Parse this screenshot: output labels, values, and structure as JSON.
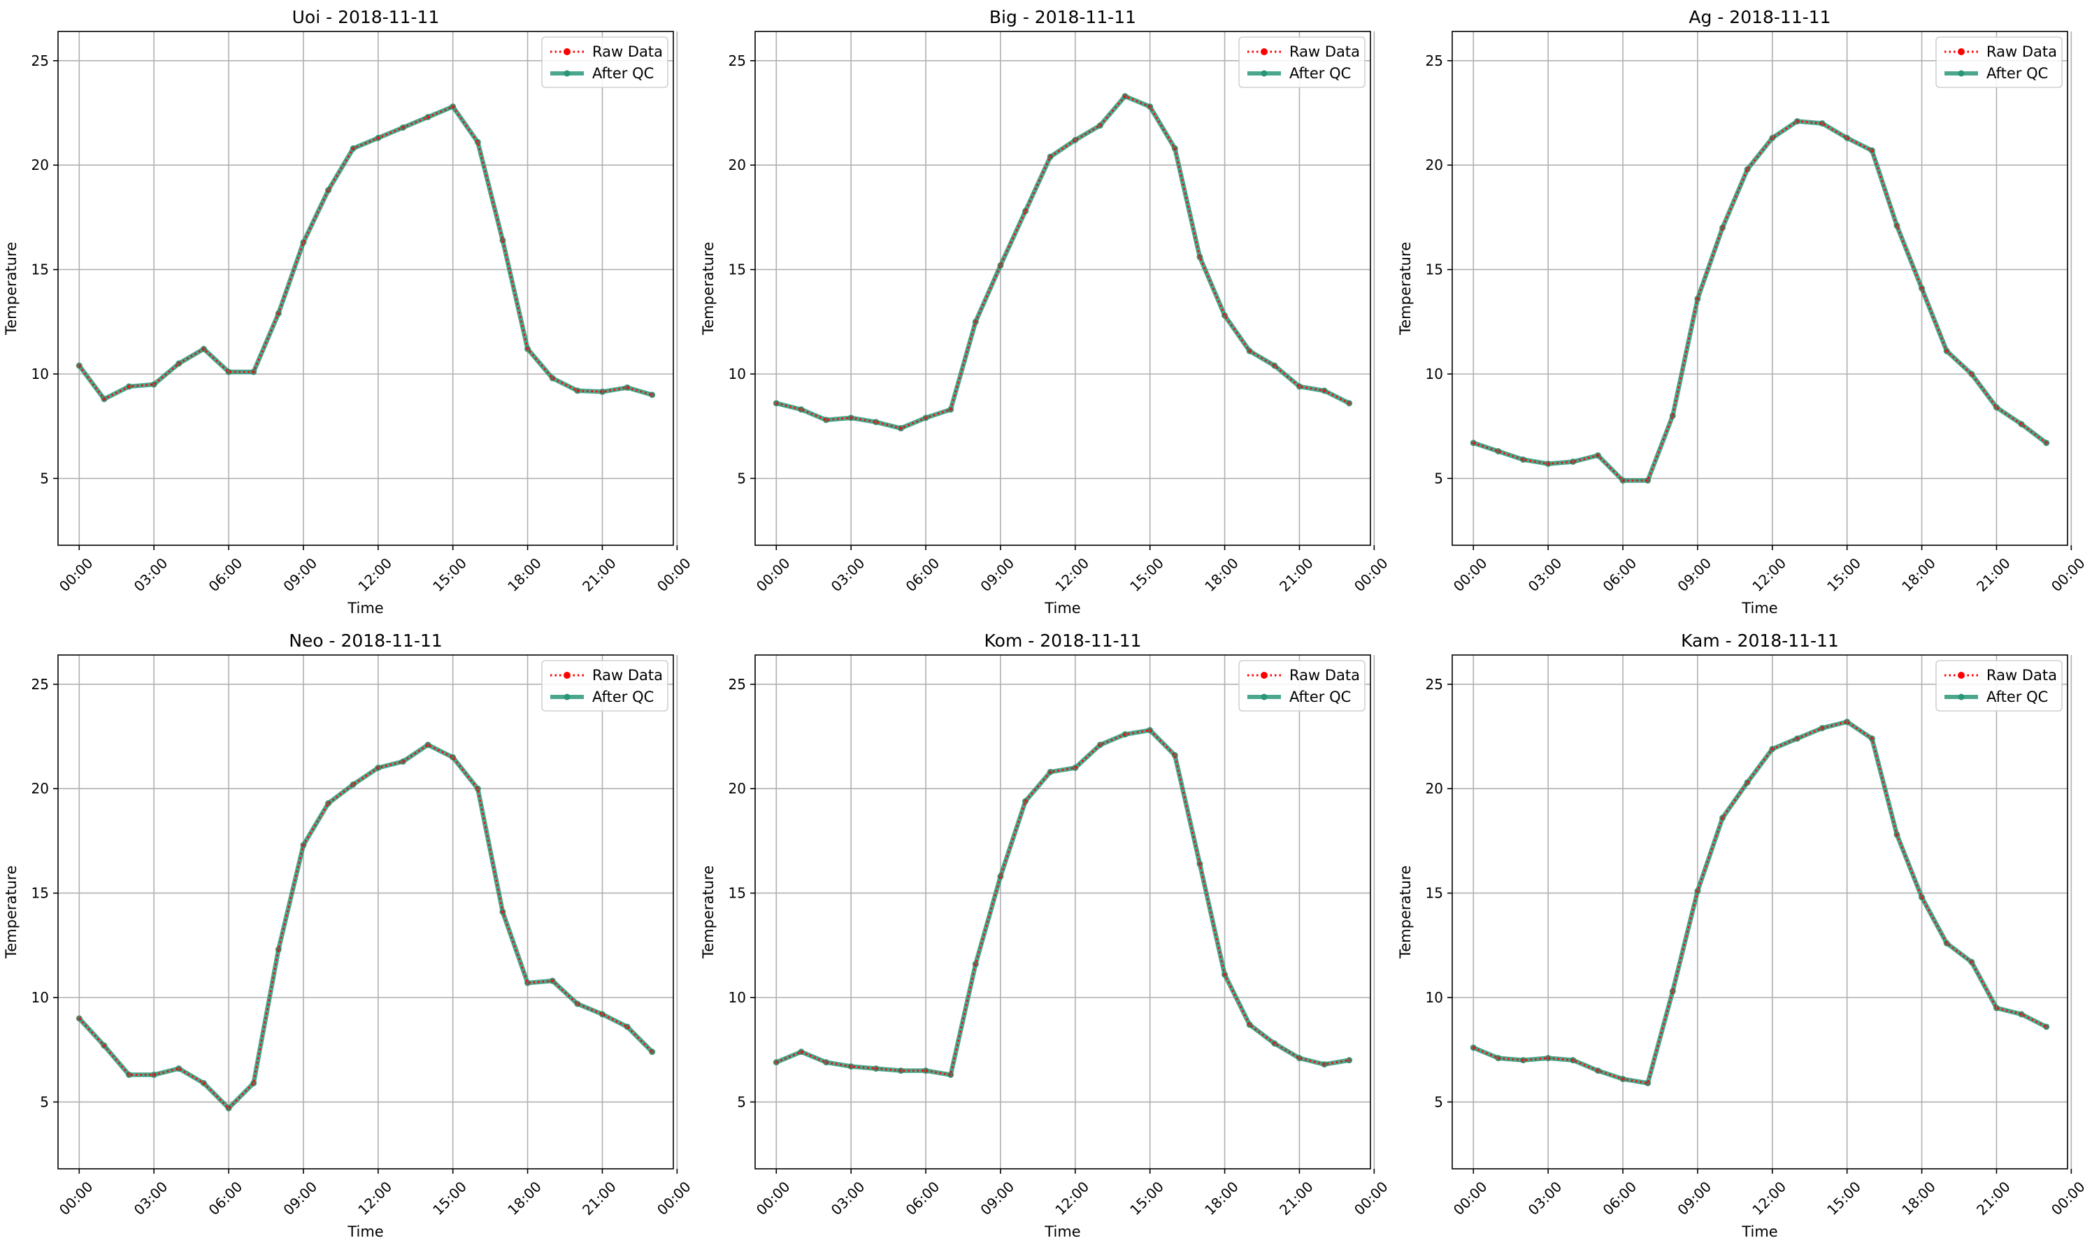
{
  "chart_data": [
    {
      "type": "line",
      "title": "Uoi - 2018-11-11",
      "xlabel": "Time",
      "ylabel": "Temperature",
      "ylim": [
        1.8,
        26.4
      ],
      "xlim": [
        -0.85,
        23.85
      ],
      "yticks": [
        5,
        10,
        15,
        20,
        25
      ],
      "xticks": [
        0,
        3,
        6,
        9,
        12,
        15,
        18,
        21,
        24
      ],
      "xtick_labels": [
        "00:00",
        "03:00",
        "06:00",
        "09:00",
        "12:00",
        "15:00",
        "18:00",
        "21:00",
        "00:00"
      ],
      "grid": true,
      "legend_position": "top-right",
      "x": [
        0,
        1,
        2,
        3,
        4,
        5,
        6,
        7,
        8,
        9,
        10,
        11,
        12,
        13,
        14,
        15,
        16,
        17,
        18,
        19,
        20,
        21,
        22,
        23
      ],
      "series": [
        {
          "name": "Raw Data",
          "color": "#ff0000",
          "style": "dotted",
          "values": [
            10.4,
            8.8,
            9.4,
            9.5,
            10.5,
            11.2,
            10.1,
            10.1,
            12.9,
            16.3,
            18.8,
            20.8,
            21.3,
            21.8,
            22.3,
            22.8,
            21.1,
            16.4,
            11.2,
            9.8,
            9.2,
            9.15,
            9.35,
            9.0
          ]
        },
        {
          "name": "After QC",
          "color": "#2a9678",
          "style": "solid",
          "values": [
            10.4,
            8.8,
            9.4,
            9.5,
            10.5,
            11.2,
            10.1,
            10.1,
            12.9,
            16.3,
            18.8,
            20.8,
            21.3,
            21.8,
            22.3,
            22.8,
            21.1,
            16.4,
            11.2,
            9.8,
            9.2,
            9.15,
            9.35,
            9.0
          ]
        }
      ]
    },
    {
      "type": "line",
      "title": "Big - 2018-11-11",
      "xlabel": "Time",
      "ylabel": "Temperature",
      "ylim": [
        1.8,
        26.4
      ],
      "xlim": [
        -0.85,
        23.85
      ],
      "yticks": [
        5,
        10,
        15,
        20,
        25
      ],
      "xticks": [
        0,
        3,
        6,
        9,
        12,
        15,
        18,
        21,
        24
      ],
      "xtick_labels": [
        "00:00",
        "03:00",
        "06:00",
        "09:00",
        "12:00",
        "15:00",
        "18:00",
        "21:00",
        "00:00"
      ],
      "grid": true,
      "legend_position": "top-right",
      "x": [
        0,
        1,
        2,
        3,
        4,
        5,
        6,
        7,
        8,
        9,
        10,
        11,
        12,
        13,
        14,
        15,
        16,
        17,
        18,
        19,
        20,
        21,
        22,
        23
      ],
      "series": [
        {
          "name": "Raw Data",
          "color": "#ff0000",
          "style": "dotted",
          "values": [
            8.6,
            8.3,
            7.8,
            7.9,
            7.7,
            7.4,
            7.9,
            8.3,
            12.5,
            15.2,
            17.8,
            20.4,
            21.2,
            21.9,
            23.3,
            22.8,
            20.8,
            15.6,
            12.8,
            11.1,
            10.4,
            9.4,
            9.2,
            8.6
          ]
        },
        {
          "name": "After QC",
          "color": "#2a9678",
          "style": "solid",
          "values": [
            8.6,
            8.3,
            7.8,
            7.9,
            7.7,
            7.4,
            7.9,
            8.3,
            12.5,
            15.2,
            17.8,
            20.4,
            21.2,
            21.9,
            23.3,
            22.8,
            20.8,
            15.6,
            12.8,
            11.1,
            10.4,
            9.4,
            9.2,
            8.6
          ]
        }
      ]
    },
    {
      "type": "line",
      "title": "Ag - 2018-11-11",
      "xlabel": "Time",
      "ylabel": "Temperature",
      "ylim": [
        1.8,
        26.4
      ],
      "xlim": [
        -0.85,
        23.85
      ],
      "yticks": [
        5,
        10,
        15,
        20,
        25
      ],
      "xticks": [
        0,
        3,
        6,
        9,
        12,
        15,
        18,
        21,
        24
      ],
      "xtick_labels": [
        "00:00",
        "03:00",
        "06:00",
        "09:00",
        "12:00",
        "15:00",
        "18:00",
        "21:00",
        "00:00"
      ],
      "grid": true,
      "legend_position": "top-right",
      "x": [
        0,
        1,
        2,
        3,
        4,
        5,
        6,
        7,
        8,
        9,
        10,
        11,
        12,
        13,
        14,
        15,
        16,
        17,
        18,
        19,
        20,
        21,
        22,
        23
      ],
      "series": [
        {
          "name": "Raw Data",
          "color": "#ff0000",
          "style": "dotted",
          "values": [
            6.7,
            6.3,
            5.9,
            5.7,
            5.8,
            6.1,
            4.9,
            4.9,
            8.0,
            13.6,
            17.0,
            19.8,
            21.3,
            22.1,
            22.0,
            21.3,
            20.7,
            17.1,
            14.1,
            11.1,
            10.0,
            8.4,
            7.6,
            6.7
          ]
        },
        {
          "name": "After QC",
          "color": "#2a9678",
          "style": "solid",
          "values": [
            6.7,
            6.3,
            5.9,
            5.7,
            5.8,
            6.1,
            4.9,
            4.9,
            8.0,
            13.6,
            17.0,
            19.8,
            21.3,
            22.1,
            22.0,
            21.3,
            20.7,
            17.1,
            14.1,
            11.1,
            10.0,
            8.4,
            7.6,
            6.7
          ]
        }
      ]
    },
    {
      "type": "line",
      "title": "Neo - 2018-11-11",
      "xlabel": "Time",
      "ylabel": "Temperature",
      "ylim": [
        1.8,
        26.4
      ],
      "xlim": [
        -0.85,
        23.85
      ],
      "yticks": [
        5,
        10,
        15,
        20,
        25
      ],
      "xticks": [
        0,
        3,
        6,
        9,
        12,
        15,
        18,
        21,
        24
      ],
      "xtick_labels": [
        "00:00",
        "03:00",
        "06:00",
        "09:00",
        "12:00",
        "15:00",
        "18:00",
        "21:00",
        "00:00"
      ],
      "grid": true,
      "legend_position": "top-right",
      "x": [
        0,
        1,
        2,
        3,
        4,
        5,
        6,
        7,
        8,
        9,
        10,
        11,
        12,
        13,
        14,
        15,
        16,
        17,
        18,
        19,
        20,
        21,
        22,
        23
      ],
      "series": [
        {
          "name": "Raw Data",
          "color": "#ff0000",
          "style": "dotted",
          "values": [
            9.0,
            7.7,
            6.3,
            6.3,
            6.6,
            5.9,
            4.7,
            5.9,
            12.3,
            17.3,
            19.3,
            20.2,
            21.0,
            21.3,
            22.1,
            21.5,
            20.0,
            14.1,
            10.7,
            10.8,
            9.7,
            9.2,
            8.6,
            7.4
          ]
        },
        {
          "name": "After QC",
          "color": "#2a9678",
          "style": "solid",
          "values": [
            9.0,
            7.7,
            6.3,
            6.3,
            6.6,
            5.9,
            4.7,
            5.9,
            12.3,
            17.3,
            19.3,
            20.2,
            21.0,
            21.3,
            22.1,
            21.5,
            20.0,
            14.1,
            10.7,
            10.8,
            9.7,
            9.2,
            8.6,
            7.4
          ]
        }
      ]
    },
    {
      "type": "line",
      "title": "Kom - 2018-11-11",
      "xlabel": "Time",
      "ylabel": "Temperature",
      "ylim": [
        1.8,
        26.4
      ],
      "xlim": [
        -0.85,
        23.85
      ],
      "yticks": [
        5,
        10,
        15,
        20,
        25
      ],
      "xticks": [
        0,
        3,
        6,
        9,
        12,
        15,
        18,
        21,
        24
      ],
      "xtick_labels": [
        "00:00",
        "03:00",
        "06:00",
        "09:00",
        "12:00",
        "15:00",
        "18:00",
        "21:00",
        "00:00"
      ],
      "grid": true,
      "legend_position": "top-right",
      "x": [
        0,
        1,
        2,
        3,
        4,
        5,
        6,
        7,
        8,
        9,
        10,
        11,
        12,
        13,
        14,
        15,
        16,
        17,
        18,
        19,
        20,
        21,
        22,
        23
      ],
      "series": [
        {
          "name": "Raw Data",
          "color": "#ff0000",
          "style": "dotted",
          "values": [
            6.9,
            7.4,
            6.9,
            6.7,
            6.6,
            6.5,
            6.5,
            6.3,
            11.6,
            15.8,
            19.4,
            20.8,
            21.0,
            22.1,
            22.6,
            22.8,
            21.6,
            16.4,
            11.1,
            8.7,
            7.8,
            7.1,
            6.8,
            7.0
          ]
        },
        {
          "name": "After QC",
          "color": "#2a9678",
          "style": "solid",
          "values": [
            6.9,
            7.4,
            6.9,
            6.7,
            6.6,
            6.5,
            6.5,
            6.3,
            11.6,
            15.8,
            19.4,
            20.8,
            21.0,
            22.1,
            22.6,
            22.8,
            21.6,
            16.4,
            11.1,
            8.7,
            7.8,
            7.1,
            6.8,
            7.0
          ]
        }
      ]
    },
    {
      "type": "line",
      "title": "Kam - 2018-11-11",
      "xlabel": "Time",
      "ylabel": "Temperature",
      "ylim": [
        1.8,
        26.4
      ],
      "xlim": [
        -0.85,
        23.85
      ],
      "yticks": [
        5,
        10,
        15,
        20,
        25
      ],
      "xticks": [
        0,
        3,
        6,
        9,
        12,
        15,
        18,
        21,
        24
      ],
      "xtick_labels": [
        "00:00",
        "03:00",
        "06:00",
        "09:00",
        "12:00",
        "15:00",
        "18:00",
        "21:00",
        "00:00"
      ],
      "grid": true,
      "legend_position": "top-right",
      "x": [
        0,
        1,
        2,
        3,
        4,
        5,
        6,
        7,
        8,
        9,
        10,
        11,
        12,
        13,
        14,
        15,
        16,
        17,
        18,
        19,
        20,
        21,
        22,
        23
      ],
      "series": [
        {
          "name": "Raw Data",
          "color": "#ff0000",
          "style": "dotted",
          "values": [
            7.6,
            7.1,
            7.0,
            7.1,
            7.0,
            6.5,
            6.1,
            5.9,
            10.3,
            15.1,
            18.6,
            20.3,
            21.9,
            22.4,
            22.9,
            23.2,
            22.4,
            17.8,
            14.8,
            12.6,
            11.7,
            9.5,
            9.2,
            8.6
          ]
        },
        {
          "name": "After QC",
          "color": "#2a9678",
          "style": "solid",
          "values": [
            7.6,
            7.1,
            7.0,
            7.1,
            7.0,
            6.5,
            6.1,
            5.9,
            10.3,
            15.1,
            18.6,
            20.3,
            21.9,
            22.4,
            22.9,
            23.2,
            22.4,
            17.8,
            14.8,
            12.6,
            11.7,
            9.5,
            9.2,
            8.6
          ]
        }
      ]
    }
  ]
}
